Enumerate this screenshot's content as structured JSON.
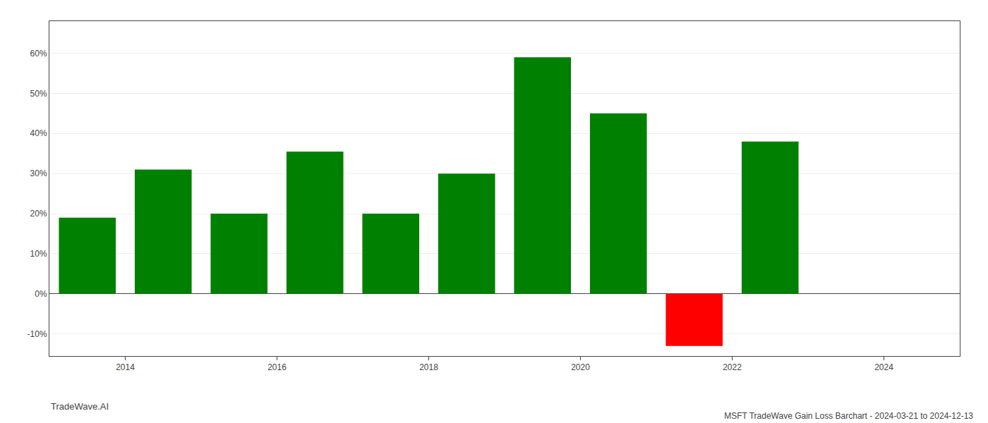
{
  "chart_data": {
    "type": "bar",
    "title": "MSFT TradeWave Gain Loss Barchart - 2024-03-21 to 2024-12-13",
    "annotations": [
      "TradeWave.AI"
    ],
    "x": [
      2013.5,
      2014.5,
      2015.5,
      2016.5,
      2017.5,
      2018.5,
      2019.5,
      2020.5,
      2021.5,
      2022.5
    ],
    "values": [
      0.19,
      0.31,
      0.2,
      0.355,
      0.2,
      0.3,
      0.59,
      0.45,
      -0.13,
      0.38
    ],
    "colors": [
      "#008000",
      "#008000",
      "#008000",
      "#008000",
      "#008000",
      "#008000",
      "#008000",
      "#008000",
      "#ff0000",
      "#008000"
    ],
    "xlim": [
      2013.0,
      2025.0
    ],
    "xticks": [
      2014,
      2016,
      2018,
      2020,
      2022,
      2024
    ],
    "ylim": [
      -0.155,
      0.68
    ],
    "yticks": [
      {
        "value": -0.1,
        "label": "-10%"
      },
      {
        "value": 0.0,
        "label": "0%"
      },
      {
        "value": 0.1,
        "label": "10%"
      },
      {
        "value": 0.2,
        "label": "20%"
      },
      {
        "value": 0.3,
        "label": "30%"
      },
      {
        "value": 0.4,
        "label": "40%"
      },
      {
        "value": 0.5,
        "label": "50%"
      },
      {
        "value": 0.6,
        "label": "60%"
      }
    ],
    "grid": true
  }
}
